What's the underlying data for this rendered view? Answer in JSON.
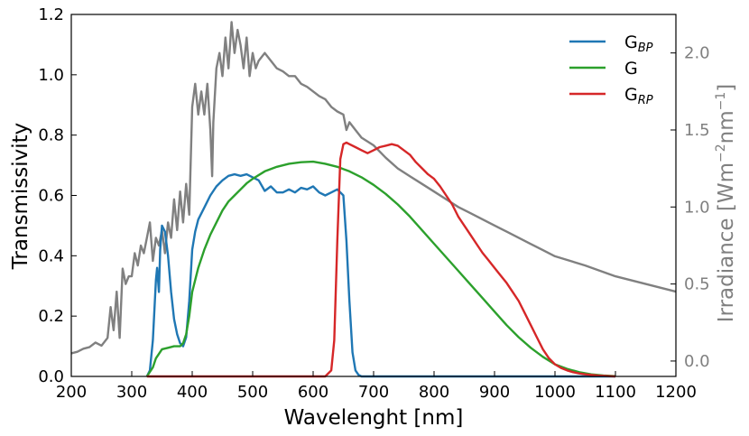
{
  "chart_data": {
    "type": "line",
    "xlabel": "Wavelenght [nm]",
    "ylabel": "Transmissivity",
    "y2label_prefix": "Irradiance [Wm",
    "y2label_exp1": "−2",
    "y2label_mid": "nm",
    "y2label_exp2": "−1",
    "y2label_suffix": "]",
    "xlim": [
      200,
      1200
    ],
    "ylim": [
      0,
      1.2
    ],
    "y2lim": [
      -0.1,
      2.25
    ],
    "xticks": [
      200,
      300,
      400,
      500,
      600,
      700,
      800,
      900,
      1000,
      1100,
      1200
    ],
    "yticks": [
      "0.0",
      "0.2",
      "0.4",
      "0.6",
      "0.8",
      "1.0",
      "1.2"
    ],
    "y2ticks": [
      "0.0",
      "0.5",
      "1.0",
      "1.5",
      "2.0"
    ],
    "legend_position": "top-right",
    "series": [
      {
        "name": "G",
        "sub": "BP",
        "color": "#1f77b4",
        "axis": "left",
        "x": [
          325,
          330,
          335,
          340,
          342,
          345,
          347,
          350,
          355,
          360,
          365,
          370,
          375,
          380,
          385,
          390,
          395,
          400,
          405,
          410,
          420,
          430,
          440,
          450,
          460,
          470,
          480,
          490,
          500,
          510,
          520,
          530,
          540,
          550,
          560,
          570,
          580,
          590,
          600,
          610,
          620,
          630,
          640,
          650,
          655,
          660,
          665,
          670,
          675,
          680,
          690,
          700,
          800,
          900,
          1000,
          1100
        ],
        "y": [
          0.0,
          0.02,
          0.12,
          0.32,
          0.36,
          0.28,
          0.42,
          0.5,
          0.48,
          0.4,
          0.28,
          0.19,
          0.14,
          0.11,
          0.1,
          0.13,
          0.25,
          0.42,
          0.48,
          0.52,
          0.56,
          0.6,
          0.63,
          0.65,
          0.665,
          0.67,
          0.665,
          0.67,
          0.66,
          0.65,
          0.615,
          0.63,
          0.61,
          0.61,
          0.62,
          0.61,
          0.625,
          0.62,
          0.63,
          0.61,
          0.6,
          0.61,
          0.62,
          0.6,
          0.45,
          0.25,
          0.08,
          0.02,
          0.005,
          0.0,
          0.0,
          0.0,
          0.0,
          0.0,
          0.0,
          0.0
        ]
      },
      {
        "name": "G",
        "sub": "",
        "color": "#2ca02c",
        "axis": "left",
        "x": [
          325,
          335,
          340,
          350,
          360,
          370,
          380,
          385,
          390,
          395,
          400,
          410,
          420,
          430,
          440,
          450,
          460,
          470,
          480,
          490,
          500,
          520,
          540,
          560,
          580,
          600,
          620,
          640,
          660,
          680,
          700,
          720,
          740,
          760,
          780,
          800,
          820,
          840,
          860,
          880,
          900,
          920,
          940,
          960,
          980,
          1000,
          1020,
          1040,
          1060,
          1080,
          1100
        ],
        "y": [
          0.0,
          0.03,
          0.06,
          0.09,
          0.095,
          0.1,
          0.1,
          0.11,
          0.14,
          0.2,
          0.28,
          0.36,
          0.42,
          0.47,
          0.51,
          0.55,
          0.58,
          0.6,
          0.62,
          0.64,
          0.655,
          0.68,
          0.695,
          0.705,
          0.71,
          0.712,
          0.705,
          0.695,
          0.68,
          0.66,
          0.635,
          0.605,
          0.57,
          0.53,
          0.485,
          0.44,
          0.395,
          0.35,
          0.305,
          0.26,
          0.215,
          0.17,
          0.13,
          0.095,
          0.065,
          0.04,
          0.025,
          0.014,
          0.007,
          0.003,
          0.001
        ]
      },
      {
        "name": "G",
        "sub": "RP",
        "color": "#d62728",
        "axis": "left",
        "x": [
          325,
          620,
          630,
          635,
          640,
          645,
          650,
          655,
          660,
          670,
          680,
          690,
          700,
          710,
          720,
          730,
          740,
          750,
          760,
          770,
          780,
          790,
          800,
          810,
          820,
          830,
          840,
          850,
          860,
          870,
          880,
          890,
          900,
          910,
          920,
          930,
          940,
          950,
          960,
          970,
          980,
          990,
          1000,
          1010,
          1020,
          1030,
          1040,
          1050,
          1060,
          1070,
          1080,
          1090,
          1100
        ],
        "y": [
          0.0,
          0.0,
          0.02,
          0.12,
          0.45,
          0.72,
          0.77,
          0.775,
          0.77,
          0.76,
          0.75,
          0.74,
          0.75,
          0.76,
          0.765,
          0.77,
          0.765,
          0.75,
          0.735,
          0.71,
          0.69,
          0.67,
          0.655,
          0.63,
          0.6,
          0.57,
          0.53,
          0.5,
          0.47,
          0.44,
          0.41,
          0.385,
          0.36,
          0.335,
          0.31,
          0.28,
          0.25,
          0.21,
          0.17,
          0.13,
          0.09,
          0.06,
          0.04,
          0.028,
          0.02,
          0.014,
          0.01,
          0.007,
          0.005,
          0.003,
          0.002,
          0.001,
          0.0
        ]
      },
      {
        "name": "Irradiance",
        "sub": "",
        "color": "#808080",
        "axis": "right",
        "legend": false,
        "x": [
          200,
          210,
          220,
          230,
          240,
          250,
          260,
          265,
          270,
          275,
          280,
          285,
          290,
          295,
          300,
          305,
          310,
          315,
          320,
          325,
          330,
          335,
          340,
          345,
          350,
          355,
          360,
          365,
          370,
          375,
          380,
          385,
          390,
          395,
          400,
          405,
          410,
          415,
          420,
          425,
          430,
          433,
          435,
          440,
          445,
          450,
          455,
          460,
          465,
          470,
          475,
          480,
          485,
          490,
          495,
          500,
          505,
          510,
          520,
          530,
          540,
          550,
          560,
          570,
          580,
          590,
          600,
          610,
          620,
          630,
          640,
          650,
          655,
          660,
          670,
          680,
          700,
          720,
          740,
          760,
          780,
          800,
          820,
          840,
          860,
          880,
          900,
          920,
          940,
          960,
          980,
          1000,
          1050,
          1100,
          1150,
          1200
        ],
        "y": [
          0.05,
          0.06,
          0.08,
          0.09,
          0.12,
          0.1,
          0.15,
          0.35,
          0.2,
          0.45,
          0.15,
          0.6,
          0.5,
          0.55,
          0.55,
          0.7,
          0.62,
          0.75,
          0.7,
          0.8,
          0.9,
          0.65,
          0.8,
          0.75,
          0.85,
          0.7,
          0.9,
          0.8,
          1.05,
          0.85,
          1.1,
          0.9,
          1.15,
          0.95,
          1.65,
          1.8,
          1.6,
          1.75,
          1.6,
          1.8,
          1.5,
          1.2,
          1.55,
          1.9,
          2.0,
          1.85,
          2.1,
          1.9,
          2.2,
          2.0,
          2.15,
          2.05,
          1.9,
          2.1,
          1.85,
          2.0,
          1.9,
          1.95,
          2.0,
          1.95,
          1.9,
          1.88,
          1.85,
          1.85,
          1.8,
          1.78,
          1.75,
          1.72,
          1.7,
          1.65,
          1.62,
          1.6,
          1.5,
          1.55,
          1.5,
          1.45,
          1.4,
          1.32,
          1.25,
          1.2,
          1.15,
          1.1,
          1.05,
          1.0,
          0.96,
          0.92,
          0.88,
          0.84,
          0.8,
          0.76,
          0.72,
          0.68,
          0.62,
          0.55,
          0.5,
          0.45
        ]
      }
    ]
  }
}
